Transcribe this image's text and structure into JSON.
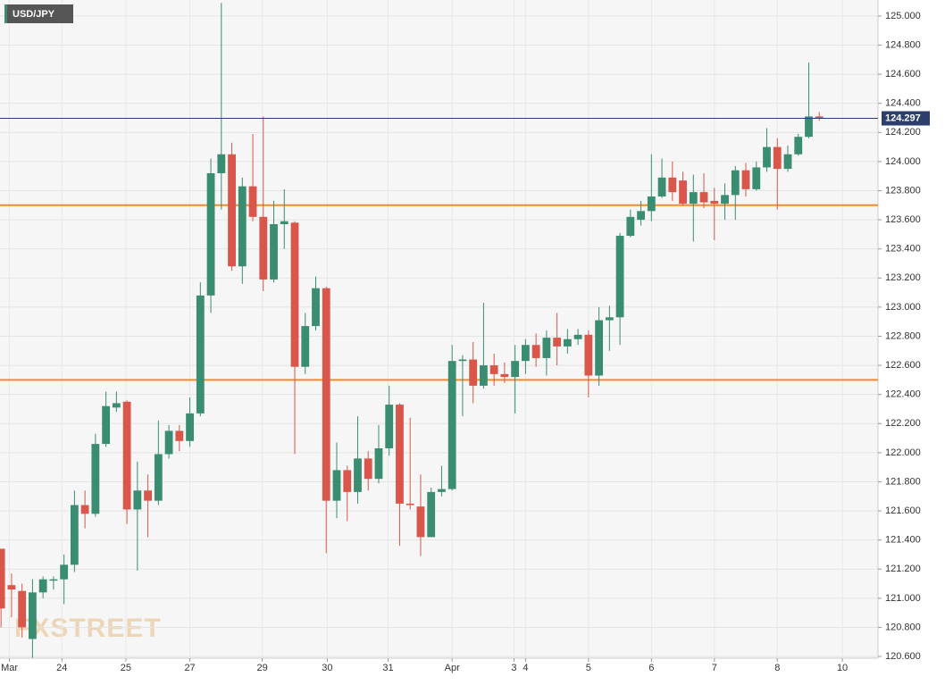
{
  "chart_data": {
    "type": "candlestick",
    "title": "USD/JPY",
    "watermark": "FXSTREET",
    "up_color": "#3b8d71",
    "down_color": "#d9574a",
    "open": [
      121.34,
      121.09,
      121.05,
      120.72,
      121.04,
      121.13,
      121.13,
      121.23,
      121.64,
      121.58,
      122.06,
      122.31,
      122.35,
      121.61,
      121.74,
      121.67,
      121.99,
      122.15,
      122.08,
      122.27,
      123.08,
      123.92,
      124.05,
      123.28,
      123.83,
      123.62,
      123.19,
      123.57,
      123.58,
      122.59,
      122.87,
      123.13,
      121.67,
      121.88,
      121.73,
      121.96,
      121.82,
      122.03,
      122.33,
      121.65,
      121.63,
      121.42,
      121.73,
      121.75,
      122.63,
      122.64,
      122.46,
      122.6,
      122.54,
      122.52,
      122.63,
      122.74,
      122.65,
      122.79,
      122.73,
      122.78,
      122.81,
      122.53,
      122.91,
      122.93,
      123.49,
      123.6,
      123.66,
      123.76,
      123.89,
      123.87,
      123.71,
      123.79,
      123.73,
      123.71,
      123.77,
      123.94,
      123.81,
      123.96,
      124.1,
      123.95,
      124.05,
      124.17,
      124.31
    ],
    "high": [
      121.34,
      121.17,
      121.1,
      121.13,
      121.15,
      121.15,
      121.3,
      121.74,
      121.74,
      122.13,
      122.42,
      122.42,
      122.36,
      121.94,
      121.85,
      122.22,
      122.19,
      122.19,
      122.38,
      123.17,
      124.02,
      125.09,
      124.13,
      123.89,
      124.19,
      124.31,
      123.73,
      123.81,
      123.59,
      122.96,
      123.21,
      123.14,
      122.07,
      121.91,
      122.25,
      122.01,
      122.19,
      122.46,
      122.34,
      122.24,
      121.85,
      121.76,
      121.91,
      122.74,
      122.67,
      122.76,
      123.03,
      122.68,
      122.62,
      122.74,
      122.78,
      122.82,
      122.84,
      122.96,
      122.85,
      122.85,
      122.84,
      123.0,
      123.01,
      123.51,
      123.67,
      123.73,
      124.05,
      124.02,
      124.0,
      123.93,
      123.91,
      123.92,
      123.82,
      123.85,
      123.97,
      123.99,
      124.0,
      124.23,
      124.16,
      124.11,
      124.19,
      124.68,
      124.34
    ],
    "low": [
      120.8,
      120.87,
      120.73,
      120.59,
      121.0,
      121.06,
      120.96,
      121.18,
      121.48,
      121.56,
      122.04,
      122.28,
      121.51,
      121.19,
      121.42,
      121.64,
      121.96,
      122.01,
      122.04,
      122.25,
      122.96,
      123.67,
      123.25,
      123.16,
      123.59,
      123.11,
      123.17,
      123.4,
      121.99,
      122.54,
      122.84,
      121.31,
      121.55,
      121.53,
      121.65,
      121.74,
      121.79,
      121.98,
      121.36,
      121.61,
      121.29,
      121.42,
      121.7,
      121.74,
      122.25,
      122.34,
      122.44,
      122.46,
      122.48,
      122.27,
      122.54,
      122.59,
      122.53,
      122.6,
      122.68,
      122.74,
      122.38,
      122.46,
      122.7,
      122.74,
      123.48,
      123.56,
      123.59,
      123.75,
      123.73,
      123.7,
      123.45,
      123.68,
      123.46,
      123.6,
      123.6,
      123.76,
      123.8,
      123.93,
      123.67,
      123.93,
      124.04,
      124.16,
      124.28
    ],
    "close": [
      120.93,
      121.06,
      120.8,
      121.04,
      121.13,
      121.13,
      121.23,
      121.64,
      121.58,
      122.06,
      122.32,
      122.34,
      121.61,
      121.74,
      121.67,
      121.99,
      122.15,
      122.08,
      122.27,
      123.08,
      123.92,
      124.05,
      123.28,
      123.83,
      123.62,
      123.19,
      123.57,
      123.59,
      122.59,
      122.87,
      123.13,
      121.67,
      121.88,
      121.73,
      121.96,
      121.82,
      122.03,
      122.33,
      121.65,
      121.64,
      121.42,
      121.73,
      121.75,
      122.63,
      122.64,
      122.46,
      122.6,
      122.54,
      122.52,
      122.63,
      122.74,
      122.65,
      122.79,
      122.73,
      122.78,
      122.81,
      122.53,
      122.91,
      122.93,
      123.49,
      123.62,
      123.66,
      123.76,
      123.89,
      123.79,
      123.71,
      123.79,
      123.72,
      123.71,
      123.77,
      123.94,
      123.81,
      123.96,
      124.1,
      123.95,
      124.05,
      124.17,
      124.31,
      124.3
    ],
    "hlines": [
      {
        "value": 123.7,
        "color": "#f28c28"
      },
      {
        "value": 122.5,
        "color": "#f28c28"
      }
    ],
    "last_price": 124.297,
    "last_price_color": "#2c3e6b",
    "xlim": [
      -0.1,
      83.6
    ],
    "xticks": [
      {
        "value": 0.8,
        "label": "Mar"
      },
      {
        "value": 5.8,
        "label": "24"
      },
      {
        "value": 11.9,
        "label": "25"
      },
      {
        "value": 18,
        "label": "27"
      },
      {
        "value": 24.9,
        "label": "29"
      },
      {
        "value": 31.1,
        "label": "30"
      },
      {
        "value": 36.9,
        "label": "31"
      },
      {
        "value": 43,
        "label": "Apr"
      },
      {
        "value": 48.9,
        "label": "3"
      },
      {
        "value": 50,
        "label": "4"
      },
      {
        "value": 56,
        "label": "5"
      },
      {
        "value": 62,
        "label": "6"
      },
      {
        "value": 68,
        "label": "7"
      },
      {
        "value": 74,
        "label": "8"
      },
      {
        "value": 80.2,
        "label": "10"
      }
    ],
    "ylim": [
      120.588,
      125.11
    ],
    "yticks": [
      {
        "value": 120.6,
        "label": "120.600"
      },
      {
        "value": 120.8,
        "label": "120.800"
      },
      {
        "value": 121.0,
        "label": "121.000"
      },
      {
        "value": 121.2,
        "label": "121.200"
      },
      {
        "value": 121.4,
        "label": "121.400"
      },
      {
        "value": 121.6,
        "label": "121.600"
      },
      {
        "value": 121.8,
        "label": "121.800"
      },
      {
        "value": 122.0,
        "label": "122.000"
      },
      {
        "value": 122.2,
        "label": "122.200"
      },
      {
        "value": 122.4,
        "label": "122.400"
      },
      {
        "value": 122.6,
        "label": "122.600"
      },
      {
        "value": 122.8,
        "label": "122.800"
      },
      {
        "value": 123.0,
        "label": "123.000"
      },
      {
        "value": 123.2,
        "label": "123.200"
      },
      {
        "value": 123.4,
        "label": "123.400"
      },
      {
        "value": 123.6,
        "label": "123.600"
      },
      {
        "value": 123.8,
        "label": "123.800"
      },
      {
        "value": 124.0,
        "label": "124.000"
      },
      {
        "value": 124.2,
        "label": "124.200"
      },
      {
        "value": 124.4,
        "label": "124.400"
      },
      {
        "value": 124.6,
        "label": "124.600"
      },
      {
        "value": 124.8,
        "label": "124.800"
      },
      {
        "value": 125.0,
        "label": "125.000"
      }
    ],
    "grid": true
  }
}
